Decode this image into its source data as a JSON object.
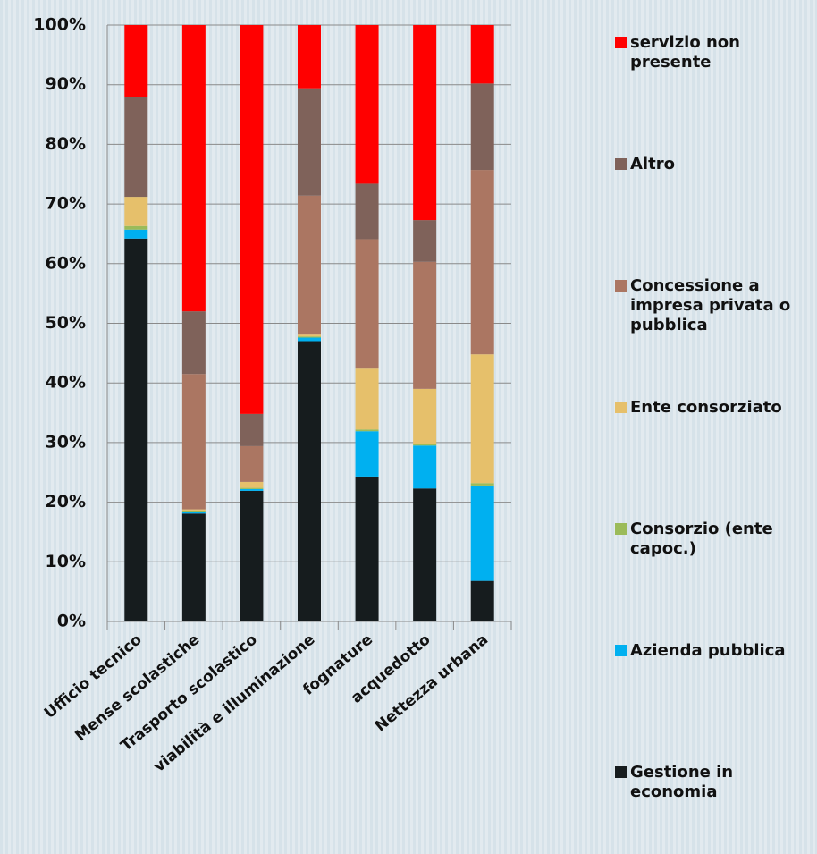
{
  "chart_data": {
    "type": "stacked-bar",
    "categories": [
      "Ufficio tecnico",
      "Mense scolastiche",
      "Trasporto scolastico",
      "viabilità e illuminazione",
      "fognature",
      "acquedotto",
      "Nettezza urbana"
    ],
    "series": [
      {
        "name": "Gestione in economia",
        "color": "#161c1e",
        "values": [
          64.2,
          18.1,
          21.9,
          47,
          24.3,
          22.3,
          6.8
        ]
      },
      {
        "name": "Azienda pubblica",
        "color": "#00b0f0",
        "values": [
          1.5,
          0.2,
          0.3,
          0.6,
          7.6,
          7.2,
          16
        ]
      },
      {
        "name": "Consorzio (ente capoc.)",
        "color": "#9bbb59",
        "values": [
          0.6,
          0.3,
          0.2,
          0.2,
          0.3,
          0.2,
          0.4
        ]
      },
      {
        "name": "Ente consorziato",
        "color": "#e6c06b",
        "values": [
          4.9,
          0.2,
          1,
          0.3,
          10.2,
          9.3,
          21.6
        ]
      },
      {
        "name": "Concessione a impresa privata o pubblica",
        "color": "#ab7662",
        "values": [
          0,
          22.7,
          6,
          23.3,
          21.7,
          21.3,
          30.9
        ]
      },
      {
        "name": "Altro",
        "color": "#7f625a",
        "values": [
          16.7,
          10.5,
          5.4,
          18,
          9.3,
          7,
          14.5
        ]
      },
      {
        "name": "servizio non presente",
        "color": "#ff0000",
        "values": [
          12.1,
          48,
          65.2,
          10.6,
          26.6,
          32.7,
          9.8
        ]
      }
    ],
    "ylim": [
      0,
      100
    ],
    "yticks": [
      {
        "value": 0,
        "label": "0%"
      },
      {
        "value": 10,
        "label": "10%"
      },
      {
        "value": 20,
        "label": "20%"
      },
      {
        "value": 30,
        "label": "30%"
      },
      {
        "value": 40,
        "label": "40%"
      },
      {
        "value": 50,
        "label": "50%"
      },
      {
        "value": 60,
        "label": "60%"
      },
      {
        "value": 70,
        "label": "70%"
      },
      {
        "value": 80,
        "label": "80%"
      },
      {
        "value": 90,
        "label": "90%"
      },
      {
        "value": 100,
        "label": "100%"
      }
    ],
    "grid": true
  }
}
